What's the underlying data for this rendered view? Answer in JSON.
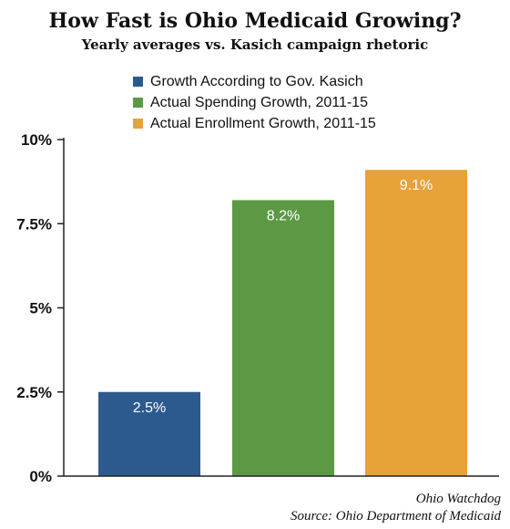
{
  "chart_data": {
    "type": "bar",
    "title": "How Fast is Ohio Medicaid Growing?",
    "subtitle": "Yearly averages vs. Kasich campaign rhetoric",
    "categories": [
      "Growth According to Gov. Kasich",
      "Actual Spending Growth, 2011-15",
      "Actual Enrollment Growth, 2011-15"
    ],
    "values": [
      2.5,
      8.2,
      9.1
    ],
    "value_labels": [
      "2.5%",
      "8.2%",
      "9.1%"
    ],
    "colors": [
      "#2d5a8e",
      "#5d9945",
      "#e8a23a"
    ],
    "yticks": [
      0,
      2.5,
      5,
      7.5,
      10
    ],
    "ytick_labels": [
      "0%",
      "2.5%",
      "5%",
      "7.5%",
      "10%"
    ],
    "ylim": [
      0,
      10
    ],
    "legend_position": "top-center",
    "grid": false
  },
  "source": {
    "line1": "Ohio Watchdog",
    "line2": "Source: Ohio Department of Medicaid"
  }
}
